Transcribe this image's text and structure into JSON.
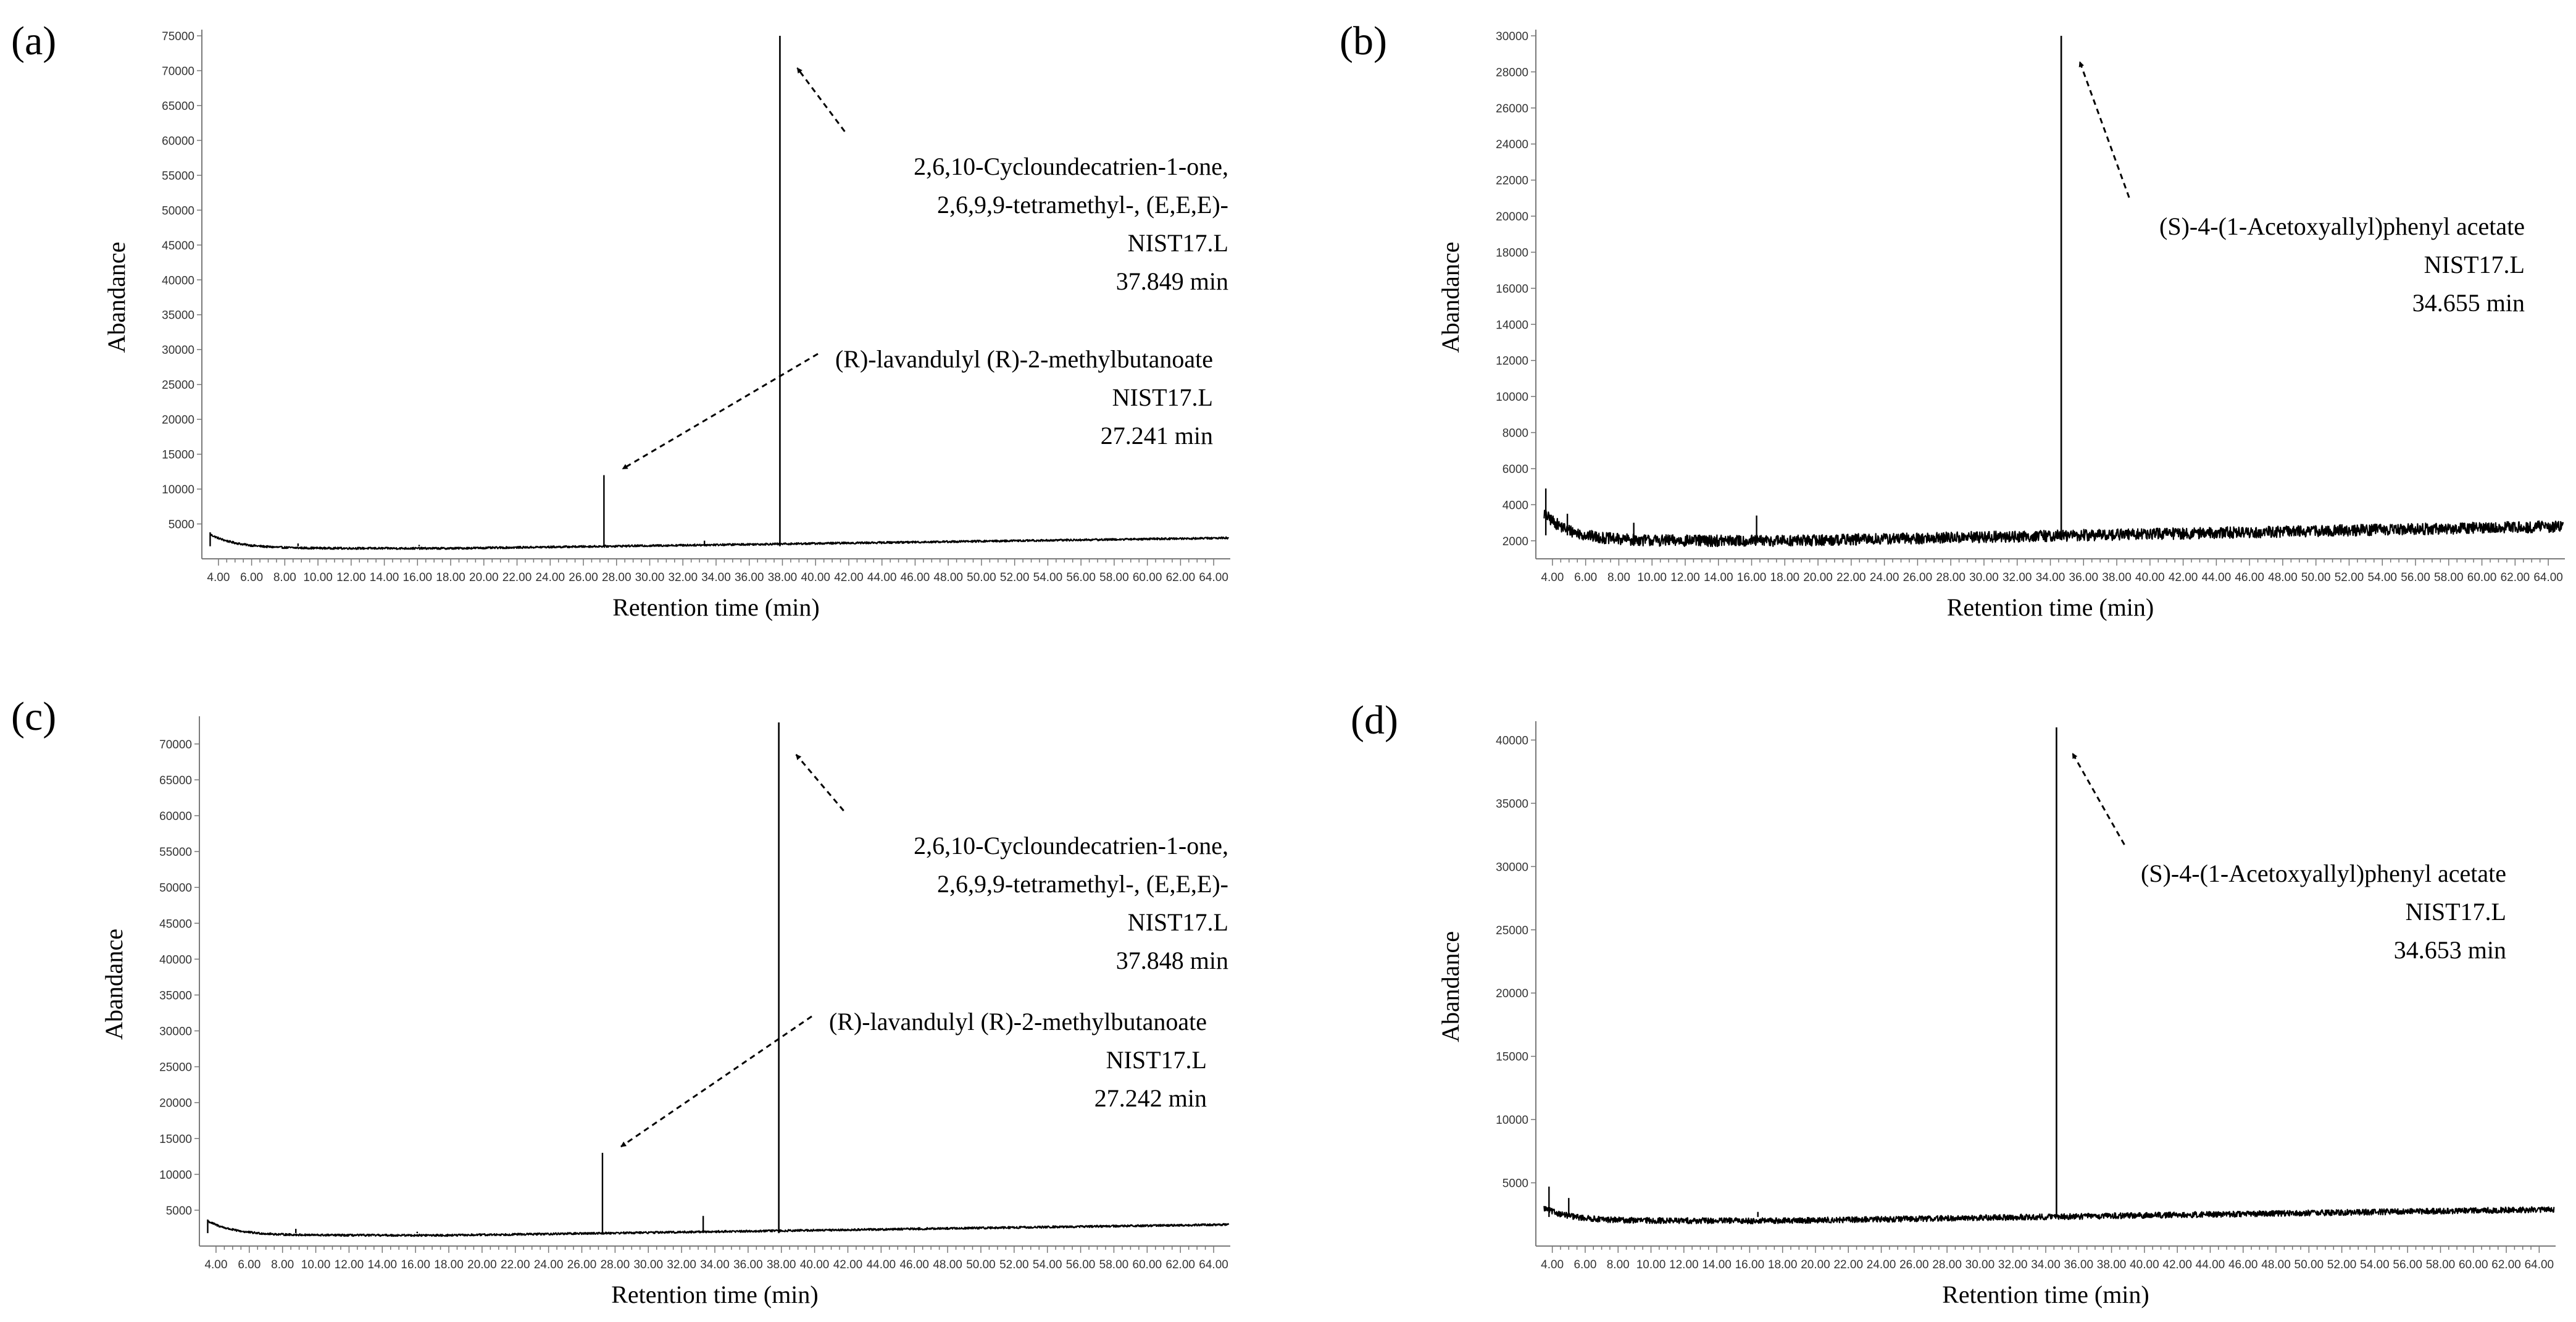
{
  "chart_data": [
    {
      "panel_label": "(a)",
      "type": "line",
      "xlabel": "Retention time (min)",
      "ylabel": "Abandance",
      "xlim": [
        3.0,
        65.0
      ],
      "ylim": [
        0,
        75000
      ],
      "xticks": [
        "4.00",
        "6.00",
        "8.00",
        "10.00",
        "12.00",
        "14.00",
        "16.00",
        "18.00",
        "20.00",
        "22.00",
        "24.00",
        "26.00",
        "28.00",
        "30.00",
        "32.00",
        "34.00",
        "36.00",
        "38.00",
        "40.00",
        "42.00",
        "44.00",
        "46.00",
        "48.00",
        "50.00",
        "52.00",
        "54.00",
        "56.00",
        "58.00",
        "60.00",
        "62.00",
        "64.00"
      ],
      "yticks": [
        "5000",
        "10000",
        "15000",
        "20000",
        "25000",
        "30000",
        "35000",
        "40000",
        "45000",
        "50000",
        "55000",
        "60000",
        "65000",
        "70000",
        "75000"
      ],
      "baseline_start": 3500,
      "baseline_mid": 1500,
      "baseline_end": 3000,
      "peaks": [
        {
          "x": 3.5,
          "y": 3800
        },
        {
          "x": 8.8,
          "y": 2200
        },
        {
          "x": 16.1,
          "y": 2000
        },
        {
          "x": 27.241,
          "y": 12000
        },
        {
          "x": 33.3,
          "y": 2600
        },
        {
          "x": 37.849,
          "y": 75000
        }
      ],
      "annotations": [
        {
          "lines": [
            "2,6,10-Cycloundecatrien-1-one,",
            "2,6,9,9-tetramethyl-, (E,E,E)-",
            "NIST17.L",
            "37.849 min"
          ],
          "peak_x": 37.849
        },
        {
          "lines": [
            "(R)-lavandulyl (R)-2-methylbutanoate",
            "NIST17.L",
            "27.241 min"
          ],
          "peak_x": 27.241
        }
      ]
    },
    {
      "panel_label": "(b)",
      "type": "line",
      "xlabel": "Retention time (min)",
      "ylabel": "Abandance",
      "xlim": [
        3.0,
        65.0
      ],
      "ylim": [
        1000,
        30000
      ],
      "xticks": [
        "4.00",
        "6.00",
        "8.00",
        "10.00",
        "12.00",
        "14.00",
        "16.00",
        "18.00",
        "20.00",
        "22.00",
        "24.00",
        "26.00",
        "28.00",
        "30.00",
        "32.00",
        "34.00",
        "36.00",
        "38.00",
        "40.00",
        "42.00",
        "44.00",
        "46.00",
        "48.00",
        "50.00",
        "52.00",
        "54.00",
        "56.00",
        "58.00",
        "60.00",
        "62.00",
        "64.00"
      ],
      "yticks": [
        "2000",
        "4000",
        "6000",
        "8000",
        "10000",
        "12000",
        "14000",
        "16000",
        "18000",
        "20000",
        "22000",
        "24000",
        "26000",
        "28000",
        "30000"
      ],
      "baseline_start": 3500,
      "baseline_mid": 2000,
      "baseline_end": 2800,
      "peaks": [
        {
          "x": 3.6,
          "y": 4900
        },
        {
          "x": 4.9,
          "y": 3500
        },
        {
          "x": 8.9,
          "y": 3000
        },
        {
          "x": 16.3,
          "y": 3400
        },
        {
          "x": 34.655,
          "y": 30000
        }
      ],
      "annotations": [
        {
          "lines": [
            "(S)-4-(1-Acetoxyallyl)phenyl acetate",
            "NIST17.L",
            "34.655 min"
          ],
          "peak_x": 34.655
        }
      ]
    },
    {
      "panel_label": "(c)",
      "type": "line",
      "xlabel": "Retention time (min)",
      "ylabel": "Abandance",
      "xlim": [
        3.0,
        65.0
      ],
      "ylim": [
        0,
        73000
      ],
      "xticks": [
        "4.00",
        "6.00",
        "8.00",
        "10.00",
        "12.00",
        "14.00",
        "16.00",
        "18.00",
        "20.00",
        "22.00",
        "24.00",
        "26.00",
        "28.00",
        "30.00",
        "32.00",
        "34.00",
        "36.00",
        "38.00",
        "40.00",
        "42.00",
        "44.00",
        "46.00",
        "48.00",
        "50.00",
        "52.00",
        "54.00",
        "56.00",
        "58.00",
        "60.00",
        "62.00",
        "64.00"
      ],
      "yticks": [
        "5000",
        "10000",
        "15000",
        "20000",
        "25000",
        "30000",
        "35000",
        "40000",
        "45000",
        "50000",
        "55000",
        "60000",
        "65000",
        "70000"
      ],
      "baseline_start": 3500,
      "baseline_mid": 1500,
      "baseline_end": 3000,
      "peaks": [
        {
          "x": 3.5,
          "y": 3700
        },
        {
          "x": 8.8,
          "y": 2400
        },
        {
          "x": 16.1,
          "y": 2000
        },
        {
          "x": 27.242,
          "y": 13000
        },
        {
          "x": 33.3,
          "y": 4200
        },
        {
          "x": 37.848,
          "y": 73000
        }
      ],
      "annotations": [
        {
          "lines": [
            "2,6,10-Cycloundecatrien-1-one,",
            "2,6,9,9-tetramethyl-, (E,E,E)-",
            "NIST17.L",
            "37.848 min"
          ],
          "peak_x": 37.848
        },
        {
          "lines": [
            "(R)-lavandulyl (R)-2-methylbutanoate",
            "NIST17.L",
            "27.242 min"
          ],
          "peak_x": 27.242
        }
      ]
    },
    {
      "panel_label": "(d)",
      "type": "line",
      "xlabel": "Retention time (min)",
      "ylabel": "Abandance",
      "xlim": [
        3.0,
        65.0
      ],
      "ylim": [
        0,
        41000
      ],
      "xticks": [
        "4.00",
        "6.00",
        "8.00",
        "10.00",
        "12.00",
        "14.00",
        "16.00",
        "18.00",
        "20.00",
        "22.00",
        "24.00",
        "26.00",
        "28.00",
        "30.00",
        "32.00",
        "34.00",
        "36.00",
        "38.00",
        "40.00",
        "42.00",
        "44.00",
        "46.00",
        "48.00",
        "50.00",
        "52.00",
        "54.00",
        "56.00",
        "58.00",
        "60.00",
        "62.00",
        "64.00"
      ],
      "yticks": [
        "5000",
        "10000",
        "15000",
        "20000",
        "25000",
        "30000",
        "35000",
        "40000"
      ],
      "baseline_start": 3000,
      "baseline_mid": 2000,
      "baseline_end": 2900,
      "peaks": [
        {
          "x": 3.8,
          "y": 4700
        },
        {
          "x": 5.0,
          "y": 3800
        },
        {
          "x": 16.5,
          "y": 2700
        },
        {
          "x": 34.653,
          "y": 41000
        }
      ],
      "annotations": [
        {
          "lines": [
            "(S)-4-(1-Acetoxyallyl)phenyl acetate",
            "NIST17.L",
            "34.653 min"
          ],
          "peak_x": 34.653
        }
      ]
    }
  ]
}
